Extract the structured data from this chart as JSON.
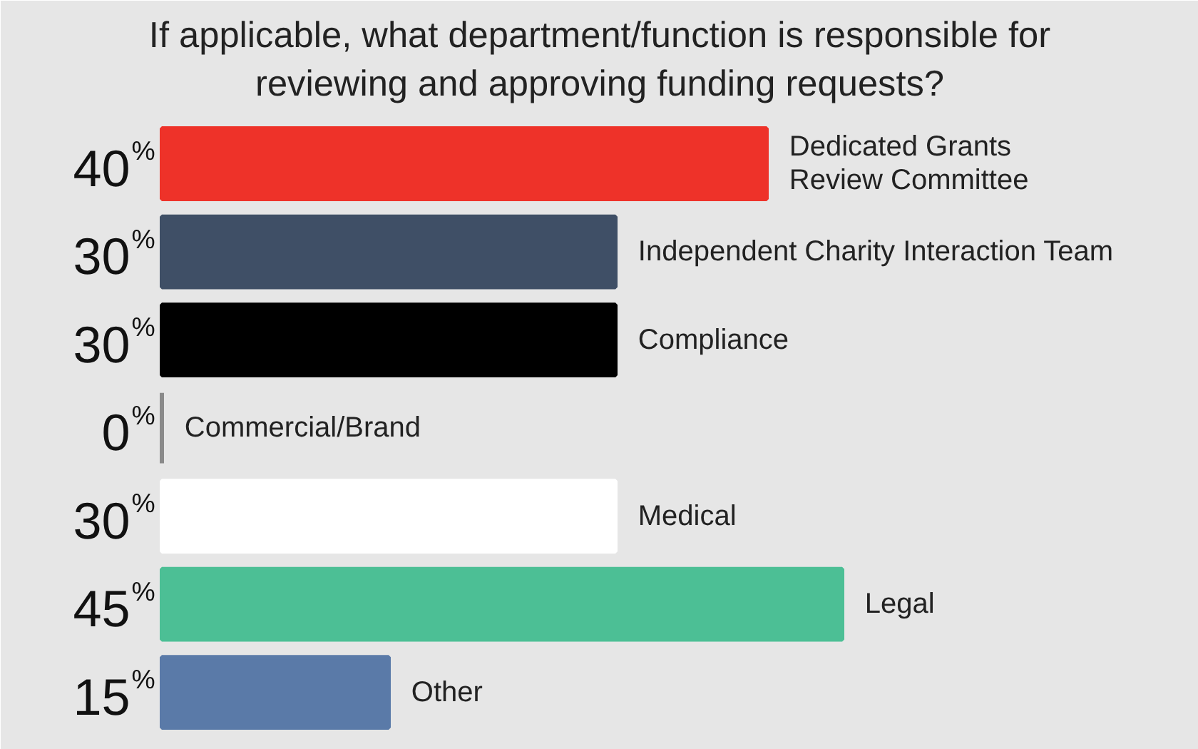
{
  "chart_data": {
    "type": "bar",
    "orientation": "horizontal",
    "title": "If applicable, what department/function is responsible for\nreviewing and approving funding requests?",
    "categories": [
      "Dedicated Grants\nReview Committee",
      "Independent Charity Interaction Team",
      "Compliance",
      "Commercial/Brand",
      "Medical",
      "Legal",
      "Other"
    ],
    "values": [
      40,
      30,
      30,
      0,
      30,
      45,
      15
    ],
    "colors": [
      "#ee3229",
      "#3f4f66",
      "#000000",
      "#8a8a8a",
      "#ffffff",
      "#4cbf95",
      "#5a7aa8"
    ],
    "value_labels": [
      "40%",
      "30%",
      "30%",
      "0%",
      "30%",
      "45%",
      "15%"
    ]
  }
}
